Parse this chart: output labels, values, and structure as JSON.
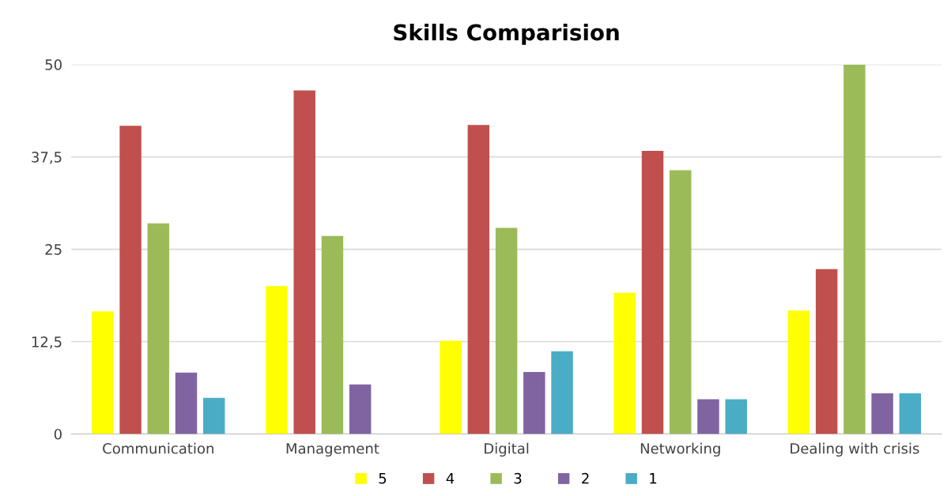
{
  "chart_data": {
    "type": "bar",
    "title": "Skills Comparision",
    "categories": [
      "Communication",
      "Management",
      "Digital",
      "Networking",
      "Dealing with crisis"
    ],
    "series": [
      {
        "name": "5",
        "color": "#ffff00",
        "values": [
          16.6,
          20.0,
          12.6,
          19.1,
          16.7
        ]
      },
      {
        "name": "4",
        "color": "#c0504d",
        "values": [
          41.7,
          46.5,
          41.8,
          38.3,
          22.3
        ]
      },
      {
        "name": "3",
        "color": "#9bbb59",
        "values": [
          28.5,
          26.8,
          27.9,
          35.7,
          50.0
        ]
      },
      {
        "name": "2",
        "color": "#8064a2",
        "values": [
          8.3,
          6.7,
          8.4,
          4.7,
          5.5
        ]
      },
      {
        "name": "1",
        "color": "#4bacc6",
        "values": [
          4.9,
          0,
          11.2,
          4.7,
          5.5
        ]
      }
    ],
    "ylim": [
      0,
      50
    ],
    "yticks": [
      0,
      {
        "value": 12.5,
        "label": "12,5"
      },
      25,
      {
        "value": 37.5,
        "label": "37,5"
      },
      50
    ],
    "grid": "y",
    "legend": "bottom"
  }
}
